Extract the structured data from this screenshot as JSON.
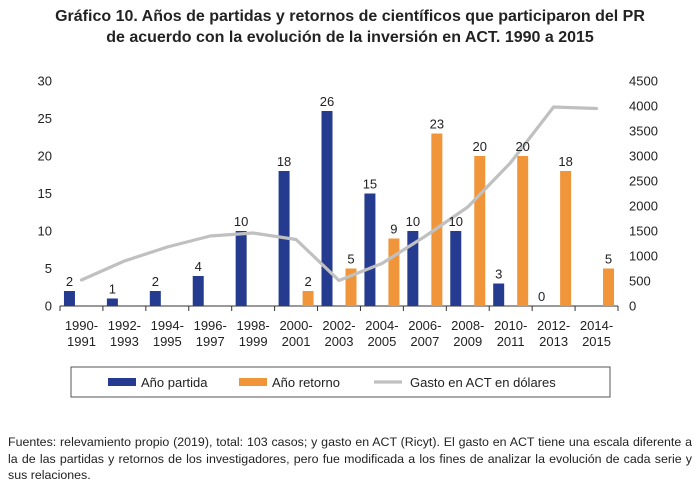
{
  "chart_data": {
    "type": "bar+line",
    "title_line1": "Gráfico 10. Años de partidas y retornos de científicos que participaron del PR",
    "title_line2": "de acuerdo con la evolución de la inversión en ACT. 1990 a 2015",
    "categories": [
      [
        "1990-",
        "1991"
      ],
      [
        "1992-",
        "1993"
      ],
      [
        "1994-",
        "1995"
      ],
      [
        "1996-",
        "1997"
      ],
      [
        "1998-",
        "1999"
      ],
      [
        "2000-",
        "2001"
      ],
      [
        "2002-",
        "2003"
      ],
      [
        "2004-",
        "2005"
      ],
      [
        "2006-",
        "2007"
      ],
      [
        "2008-",
        "2009"
      ],
      [
        "2010-",
        "2011"
      ],
      [
        "2012-",
        "2013"
      ],
      [
        "2014-",
        "2015"
      ]
    ],
    "left_axis": {
      "min": 0,
      "max": 30,
      "ticks": [
        "0",
        "5",
        "10",
        "15",
        "20",
        "25",
        "30"
      ]
    },
    "right_axis": {
      "min": 0,
      "max": 4500,
      "ticks": [
        "0",
        "500",
        "1000",
        "1500",
        "2000",
        "2500",
        "3000",
        "3500",
        "4000",
        "4500"
      ]
    },
    "series": [
      {
        "name": "Año partida",
        "axis": "left",
        "kind": "bar",
        "color": "#253b8f",
        "values": [
          2,
          1,
          2,
          4,
          10,
          18,
          26,
          15,
          10,
          10,
          3,
          0,
          null
        ],
        "labels": [
          "2",
          "1",
          "2",
          "4",
          "10",
          "18",
          "26",
          "15",
          "10",
          "10",
          "3",
          "0",
          ""
        ]
      },
      {
        "name": "Año retorno",
        "axis": "left",
        "kind": "bar",
        "color": "#f0953a",
        "values": [
          null,
          null,
          null,
          null,
          null,
          2,
          5,
          9,
          23,
          20,
          20,
          18,
          5
        ],
        "labels": [
          "",
          "",
          "",
          "",
          "",
          "2",
          "5",
          "9",
          "23",
          "20",
          "20",
          "18",
          "5"
        ]
      },
      {
        "name": "Gasto en ACT en dólares",
        "axis": "right",
        "kind": "line",
        "color": "#c0c0c0",
        "values": [
          520,
          900,
          1180,
          1400,
          1460,
          1330,
          510,
          850,
          1390,
          1980,
          2870,
          3980,
          3950
        ]
      }
    ],
    "legend": [
      "Año partida",
      "Año retorno",
      "Gasto en ACT en dólares"
    ],
    "legend_position": "bottom"
  },
  "source_note": "Fuentes: relevamiento propio (2019), total: 103 casos; y gasto en ACT (Ricyt). El gasto en ACT tiene una escala diferente a la de las partidas y retornos de los investigadores, pero fue modificada a los fines de analizar la evolución de cada serie y sus relaciones."
}
